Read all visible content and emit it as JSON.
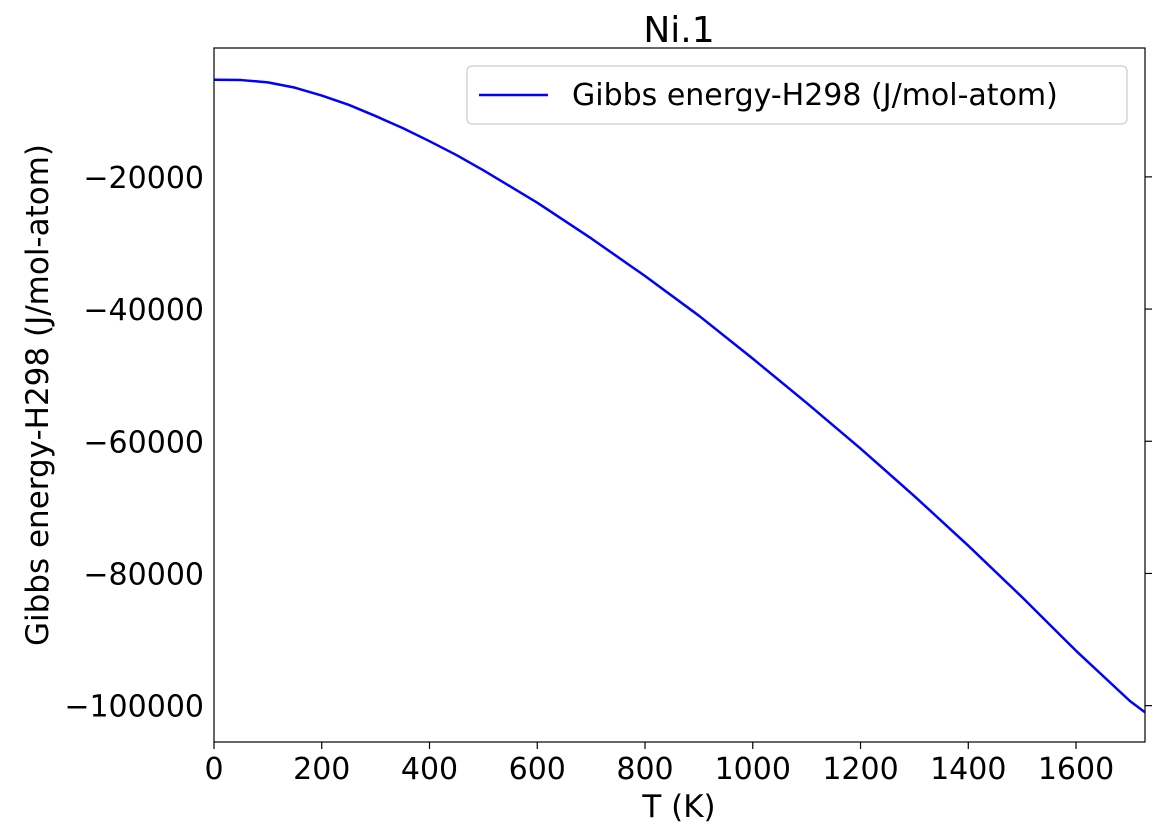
{
  "chart_data": {
    "type": "line",
    "title": "Ni.1",
    "xlabel": "T (K)",
    "ylabel": "Gibbs energy-H298 (J/mol-atom)",
    "xlim": [
      0,
      1728
    ],
    "ylim": [
      -105500,
      -500
    ],
    "xticks": [
      0,
      200,
      400,
      600,
      800,
      1000,
      1200,
      1400,
      1600
    ],
    "xtick_labels": [
      "0",
      "200",
      "400",
      "600",
      "800",
      "1000",
      "1200",
      "1400",
      "1600"
    ],
    "yticks": [
      -20000,
      -40000,
      -60000,
      -80000,
      -100000
    ],
    "ytick_labels": [
      "−20000",
      "−40000",
      "−60000",
      "−80000",
      "−100000"
    ],
    "grid": false,
    "legend_position": "upper right",
    "series": [
      {
        "name": "Gibbs energy-H298 (J/mol-atom)",
        "color": "#0000ff",
        "x": [
          0,
          50,
          100,
          150,
          200,
          250,
          300,
          350,
          400,
          450,
          500,
          600,
          700,
          800,
          900,
          1000,
          1100,
          1200,
          1300,
          1400,
          1500,
          1600,
          1700,
          1728
        ],
        "y": [
          -5300,
          -5350,
          -5700,
          -6500,
          -7700,
          -9100,
          -10800,
          -12600,
          -14600,
          -16700,
          -19000,
          -23900,
          -29300,
          -35000,
          -41000,
          -47500,
          -54200,
          -61100,
          -68300,
          -75800,
          -83600,
          -91700,
          -99300,
          -101000
        ]
      }
    ]
  }
}
